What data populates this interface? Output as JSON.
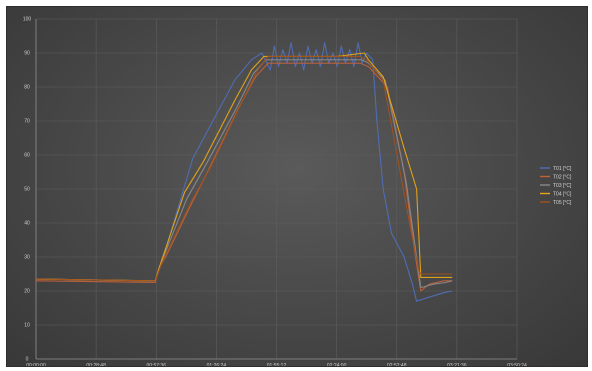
{
  "chart_data": {
    "type": "line",
    "title": "",
    "xlabel": "",
    "ylabel": "",
    "x_tick_labels": [
      "00:00:00",
      "00:28:48",
      "00:57:36",
      "01:26:24",
      "01:55:12",
      "02:24:00",
      "02:52:48",
      "03:21:36",
      "03:50:24"
    ],
    "xlim": [
      0,
      230
    ],
    "ylim": [
      0,
      100
    ],
    "y_ticks": [
      0,
      10,
      20,
      30,
      40,
      50,
      60,
      70,
      80,
      90,
      100
    ],
    "grid": true,
    "legend_position": "right",
    "series": [
      {
        "name": "T01 [°C]",
        "color": "#4f6fb8",
        "points": [
          [
            0,
            23.5
          ],
          [
            57,
            23
          ],
          [
            60,
            28
          ],
          [
            75,
            59
          ],
          [
            95,
            82
          ],
          [
            103,
            88
          ],
          [
            108,
            90
          ],
          [
            112,
            85
          ],
          [
            114,
            92
          ],
          [
            116,
            86
          ],
          [
            118,
            91
          ],
          [
            120,
            87
          ],
          [
            122,
            93
          ],
          [
            124,
            86
          ],
          [
            126,
            90
          ],
          [
            128,
            85
          ],
          [
            130,
            92
          ],
          [
            132,
            87
          ],
          [
            134,
            91
          ],
          [
            136,
            86
          ],
          [
            138,
            93
          ],
          [
            140,
            87
          ],
          [
            142,
            90
          ],
          [
            144,
            86
          ],
          [
            146,
            92
          ],
          [
            148,
            87
          ],
          [
            150,
            91
          ],
          [
            152,
            86
          ],
          [
            154,
            93
          ],
          [
            156,
            87
          ],
          [
            158,
            90
          ],
          [
            161,
            88
          ],
          [
            163,
            70
          ],
          [
            166,
            50
          ],
          [
            170,
            37
          ],
          [
            176,
            30
          ],
          [
            180,
            22
          ],
          [
            182,
            17
          ],
          [
            187,
            18
          ],
          [
            195,
            19.5
          ],
          [
            199,
            20
          ]
        ]
      },
      {
        "name": "T02 [°C]",
        "color": "#c0613b",
        "points": [
          [
            0,
            23
          ],
          [
            57,
            22.5
          ],
          [
            59,
            27
          ],
          [
            62,
            30
          ],
          [
            73,
            44
          ],
          [
            82,
            55
          ],
          [
            97,
            74
          ],
          [
            105,
            83
          ],
          [
            111,
            87
          ],
          [
            128,
            87
          ],
          [
            145,
            87
          ],
          [
            155,
            87
          ],
          [
            159,
            86
          ],
          [
            168,
            80
          ],
          [
            176,
            55
          ],
          [
            181,
            32
          ],
          [
            184,
            20
          ],
          [
            188,
            22
          ],
          [
            195,
            23
          ],
          [
            199,
            23
          ]
        ]
      },
      {
        "name": "T03 [°C]",
        "color": "#8a8a8a",
        "points": [
          [
            0,
            23.5
          ],
          [
            57,
            23
          ],
          [
            59,
            27
          ],
          [
            72,
            47
          ],
          [
            82,
            58
          ],
          [
            96,
            74
          ],
          [
            104,
            84
          ],
          [
            110,
            88
          ],
          [
            128,
            88
          ],
          [
            146,
            88
          ],
          [
            156,
            88
          ],
          [
            159,
            87
          ],
          [
            167,
            82
          ],
          [
            177,
            52
          ],
          [
            182,
            30
          ],
          [
            184,
            21
          ],
          [
            190,
            22
          ],
          [
            196,
            22.5
          ],
          [
            199,
            23
          ]
        ]
      },
      {
        "name": "T04 [°C]",
        "color": "#e8a617",
        "points": [
          [
            0,
            23.5
          ],
          [
            57,
            23
          ],
          [
            59,
            27
          ],
          [
            71,
            49
          ],
          [
            80,
            58
          ],
          [
            95,
            76
          ],
          [
            103,
            85
          ],
          [
            109,
            89
          ],
          [
            126,
            89
          ],
          [
            144,
            89
          ],
          [
            157,
            90
          ],
          [
            159,
            88
          ],
          [
            166,
            83
          ],
          [
            176,
            62
          ],
          [
            182,
            50
          ],
          [
            184,
            24
          ],
          [
            190,
            24
          ],
          [
            196,
            24
          ],
          [
            199,
            24
          ]
        ]
      },
      {
        "name": "T05 [°C]",
        "color": "#a0521d",
        "points": [
          [
            0,
            23.5
          ],
          [
            57,
            23
          ],
          [
            60,
            28
          ],
          [
            74,
            46
          ],
          [
            84,
            57
          ],
          [
            98,
            75
          ],
          [
            106,
            85
          ],
          [
            111,
            89
          ],
          [
            130,
            89
          ],
          [
            148,
            89
          ],
          [
            155,
            89
          ],
          [
            158,
            88
          ],
          [
            166,
            82
          ],
          [
            178,
            42
          ],
          [
            183,
            26
          ],
          [
            184,
            25
          ],
          [
            190,
            25
          ],
          [
            196,
            25
          ],
          [
            199,
            25
          ]
        ]
      }
    ]
  }
}
